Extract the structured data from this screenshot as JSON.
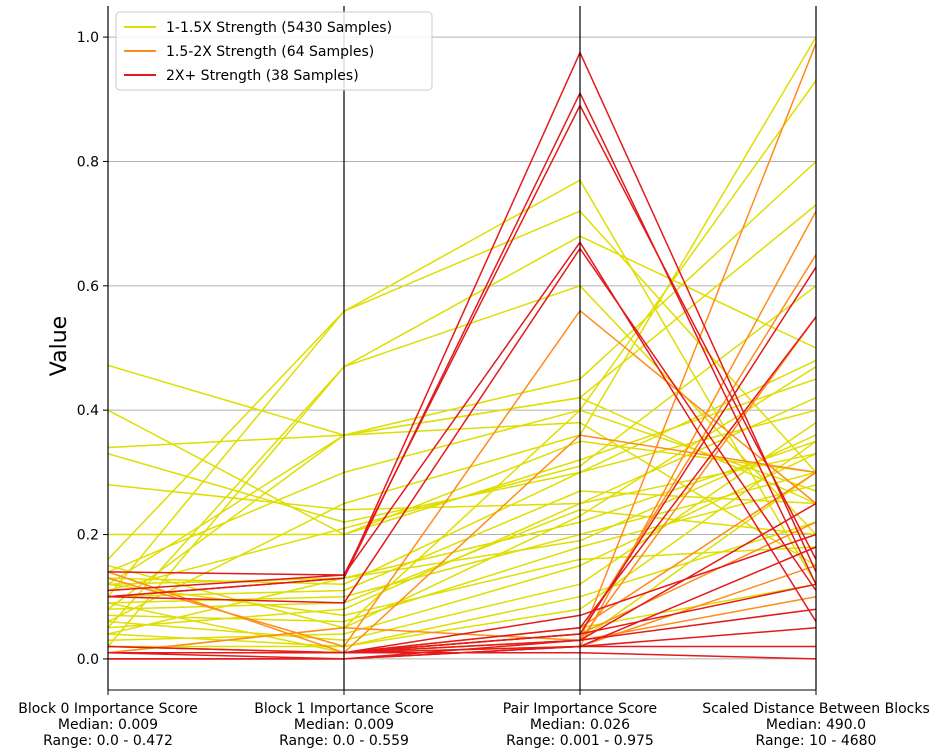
{
  "chart_data": {
    "type": "parallel-coordinates",
    "ylabel": "Value",
    "ylim": [
      -0.05,
      1.05
    ],
    "yticks": [
      0.0,
      0.2,
      0.4,
      0.6,
      0.8,
      1.0
    ],
    "ytick_labels": [
      "0.0",
      "0.2",
      "0.4",
      "0.6",
      "0.8",
      "1.0"
    ],
    "grid": true,
    "legend_position": "top-left",
    "axes": [
      {
        "label": "Block 0 Importance Score",
        "median": "Median: 0.009",
        "range": "Range: 0.0 - 0.472"
      },
      {
        "label": "Block 1 Importance Score",
        "median": "Median: 0.009",
        "range": "Range: 0.0 - 0.559"
      },
      {
        "label": "Pair Importance Score",
        "median": "Median: 0.026",
        "range": "Range: 0.001 - 0.975"
      },
      {
        "label": "Scaled Distance Between Blocks",
        "median": "Median: 490.0",
        "range": "Range: 10 - 4680"
      }
    ],
    "series": [
      {
        "name": "1-1.5X Strength (5430 Samples)",
        "color": "#dede00",
        "lines": [
          [
            0.472,
            0.36,
            0.42,
            0.25
          ],
          [
            0.4,
            0.2,
            0.35,
            0.3
          ],
          [
            0.34,
            0.36,
            0.38,
            0.15
          ],
          [
            0.33,
            0.22,
            0.3,
            0.4
          ],
          [
            0.28,
            0.24,
            0.25,
            0.33
          ],
          [
            0.2,
            0.2,
            0.32,
            0.45
          ],
          [
            0.16,
            0.559,
            0.77,
            0.12
          ],
          [
            0.1,
            0.559,
            0.72,
            0.3
          ],
          [
            0.05,
            0.47,
            0.68,
            0.5
          ],
          [
            0.02,
            0.47,
            0.6,
            0.2
          ],
          [
            0.12,
            0.36,
            0.45,
            0.8
          ],
          [
            0.08,
            0.36,
            0.42,
            0.73
          ],
          [
            0.14,
            0.3,
            0.4,
            0.93
          ],
          [
            0.06,
            0.25,
            0.36,
            1.0
          ],
          [
            0.11,
            0.21,
            0.31,
            0.6
          ],
          [
            0.04,
            0.13,
            0.22,
            0.35
          ],
          [
            0.09,
            0.1,
            0.2,
            0.3
          ],
          [
            0.13,
            0.12,
            0.3,
            0.48
          ],
          [
            0.07,
            0.06,
            0.18,
            0.28
          ],
          [
            0.03,
            0.04,
            0.15,
            0.33
          ],
          [
            0.05,
            0.08,
            0.25,
            0.42
          ],
          [
            0.1,
            0.11,
            0.27,
            0.25
          ],
          [
            0.02,
            0.02,
            0.1,
            0.22
          ],
          [
            0.06,
            0.03,
            0.12,
            0.38
          ],
          [
            0.12,
            0.07,
            0.16,
            0.18
          ],
          [
            0.08,
            0.09,
            0.24,
            0.2
          ],
          [
            0.01,
            0.05,
            0.4,
            0.27
          ],
          [
            0.04,
            0.02,
            0.08,
            0.35
          ],
          [
            0.09,
            0.01,
            0.05,
            0.12
          ],
          [
            0.02,
            0.01,
            0.03,
            0.3
          ],
          [
            0.15,
            0.05,
            0.23,
            0.47
          ],
          [
            0.12,
            0.13,
            0.19,
            0.36
          ]
        ]
      },
      {
        "name": "1.5-2X Strength (64 Samples)",
        "color": "#ff8c1a",
        "lines": [
          [
            0.14,
            0.01,
            0.36,
            0.3
          ],
          [
            0.13,
            0.02,
            0.56,
            0.25
          ],
          [
            0.01,
            0.05,
            0.03,
            0.99
          ],
          [
            0.01,
            0.01,
            0.02,
            0.72
          ],
          [
            0.02,
            0.01,
            0.04,
            0.65
          ],
          [
            0.01,
            0.01,
            0.03,
            0.55
          ],
          [
            0.01,
            0.01,
            0.05,
            0.3
          ],
          [
            0.01,
            0.01,
            0.04,
            0.22
          ],
          [
            0.0,
            0.0,
            0.02,
            0.15
          ],
          [
            0.01,
            0.01,
            0.03,
            0.1
          ]
        ]
      },
      {
        "name": "2X+ Strength (38 Samples)",
        "color": "#e31a1c",
        "lines": [
          [
            0.1,
            0.13,
            0.975,
            0.14
          ],
          [
            0.1,
            0.13,
            0.91,
            0.12
          ],
          [
            0.11,
            0.135,
            0.89,
            0.16
          ],
          [
            0.14,
            0.135,
            0.67,
            0.06
          ],
          [
            0.1,
            0.09,
            0.66,
            0.11
          ],
          [
            0.02,
            0.01,
            0.04,
            0.63
          ],
          [
            0.01,
            0.01,
            0.05,
            0.55
          ],
          [
            0.01,
            0.01,
            0.03,
            0.25
          ],
          [
            0.01,
            0.01,
            0.07,
            0.2
          ],
          [
            0.01,
            0.0,
            0.02,
            0.18
          ],
          [
            0.01,
            0.01,
            0.04,
            0.12
          ],
          [
            0.0,
            0.0,
            0.03,
            0.08
          ],
          [
            0.01,
            0.01,
            0.02,
            0.05
          ],
          [
            0.0,
            0.0,
            0.02,
            0.02
          ],
          [
            0.01,
            0.01,
            0.01,
            0.0
          ]
        ]
      }
    ]
  }
}
